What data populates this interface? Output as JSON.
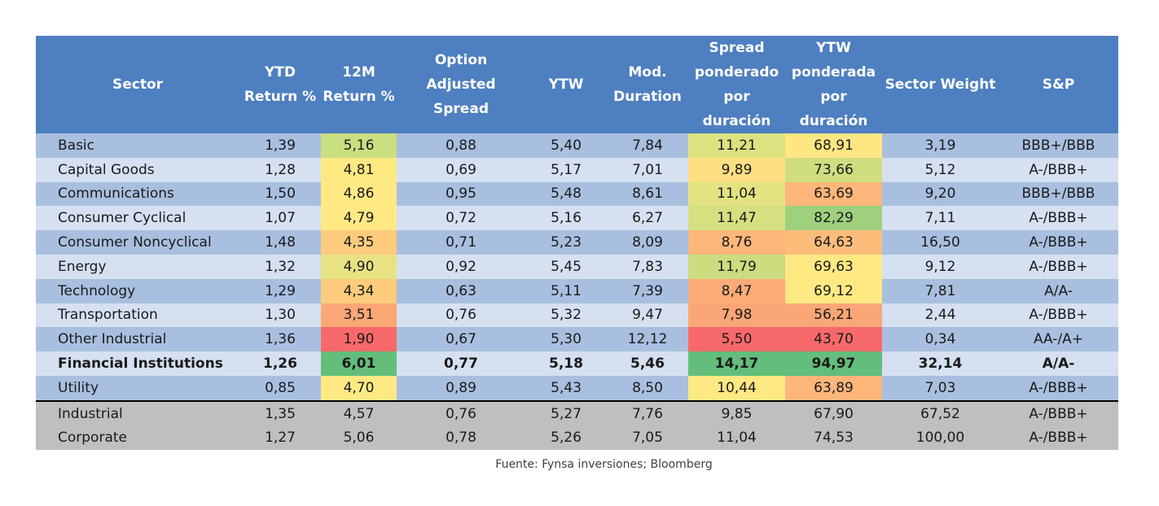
{
  "headers": [
    [
      "Sector"
    ],
    [
      "YTD",
      "Return %"
    ],
    [
      "12M",
      "Return %"
    ],
    [
      "Option",
      "Adjusted",
      "Spread"
    ],
    [
      "YTW"
    ],
    [
      "Mod.",
      "Duration"
    ],
    [
      "Spread",
      "ponderado",
      "por",
      "duración"
    ],
    [
      "YTW",
      "ponderada",
      "por",
      "duración"
    ],
    [
      "Sector Weight"
    ],
    [
      "S&P"
    ]
  ],
  "rows": [
    {
      "sector": "Basic",
      "ytd": "1,39",
      "m12": "5,16",
      "oas": "0,88",
      "ytw": "5,40",
      "dur": "7,84",
      "spw": "11,21",
      "ytwp": "68,91",
      "weight": "3,19",
      "sp": "BBB+/BBB"
    },
    {
      "sector": "Capital Goods",
      "ytd": "1,28",
      "m12": "4,81",
      "oas": "0,69",
      "ytw": "5,17",
      "dur": "7,01",
      "spw": "9,89",
      "ytwp": "73,66",
      "weight": "5,12",
      "sp": "A-/BBB+"
    },
    {
      "sector": "Communications",
      "ytd": "1,50",
      "m12": "4,86",
      "oas": "0,95",
      "ytw": "5,48",
      "dur": "8,61",
      "spw": "11,04",
      "ytwp": "63,69",
      "weight": "9,20",
      "sp": "BBB+/BBB"
    },
    {
      "sector": "Consumer Cyclical",
      "ytd": "1,07",
      "m12": "4,79",
      "oas": "0,72",
      "ytw": "5,16",
      "dur": "6,27",
      "spw": "11,47",
      "ytwp": "82,29",
      "weight": "7,11",
      "sp": "A-/BBB+"
    },
    {
      "sector": "Consumer Noncyclical",
      "ytd": "1,48",
      "m12": "4,35",
      "oas": "0,71",
      "ytw": "5,23",
      "dur": "8,09",
      "spw": "8,76",
      "ytwp": "64,63",
      "weight": "16,50",
      "sp": "A-/BBB+"
    },
    {
      "sector": "Energy",
      "ytd": "1,32",
      "m12": "4,90",
      "oas": "0,92",
      "ytw": "5,45",
      "dur": "7,83",
      "spw": "11,79",
      "ytwp": "69,63",
      "weight": "9,12",
      "sp": "A-/BBB+"
    },
    {
      "sector": "Technology",
      "ytd": "1,29",
      "m12": "4,34",
      "oas": "0,63",
      "ytw": "5,11",
      "dur": "7,39",
      "spw": "8,47",
      "ytwp": "69,12",
      "weight": "7,81",
      "sp": "A/A-"
    },
    {
      "sector": "Transportation",
      "ytd": "1,30",
      "m12": "3,51",
      "oas": "0,76",
      "ytw": "5,32",
      "dur": "9,47",
      "spw": "7,98",
      "ytwp": "56,21",
      "weight": "2,44",
      "sp": "A-/BBB+"
    },
    {
      "sector": "Other Industrial",
      "ytd": "1,36",
      "m12": "1,90",
      "oas": "0,67",
      "ytw": "5,30",
      "dur": "12,12",
      "spw": "5,50",
      "ytwp": "43,70",
      "weight": "0,34",
      "sp": "AA-/A+"
    },
    {
      "sector": "Financial Institutions",
      "ytd": "1,26",
      "m12": "6,01",
      "oas": "0,77",
      "ytw": "5,18",
      "dur": "5,46",
      "spw": "14,17",
      "ytwp": "94,97",
      "weight": "32,14",
      "sp": "A/A-"
    },
    {
      "sector": "Utility",
      "ytd": "0,85",
      "m12": "4,70",
      "oas": "0,89",
      "ytw": "5,43",
      "dur": "8,50",
      "spw": "10,44",
      "ytwp": "63,89",
      "weight": "7,03",
      "sp": "A-/BBB+"
    },
    {
      "sector": "Industrial",
      "ytd": "1,35",
      "m12": "4,57",
      "oas": "0,76",
      "ytw": "5,27",
      "dur": "7,76",
      "spw": "9,85",
      "ytwp": "67,90",
      "weight": "67,52",
      "sp": "A-/BBB+"
    },
    {
      "sector": "Corporate",
      "ytd": "1,27",
      "m12": "5,06",
      "oas": "0,78",
      "ytw": "5,26",
      "dur": "7,05",
      "spw": "11,04",
      "ytwp": "74,53",
      "weight": "100,00",
      "sp": "A-/BBB+"
    }
  ],
  "heat_colors": {
    "m12": [
      "#cadf7f",
      "#fde981",
      "#fee983",
      "#fee983",
      "#fccb7c",
      "#e8e382",
      "#fccb7c",
      "#fba776",
      "#f8696b",
      "#63be7b",
      "#fee983"
    ],
    "spw": [
      "#dde281",
      "#fcdf81",
      "#e3e382",
      "#d6e081",
      "#fcb67a",
      "#cbdd7f",
      "#fcab78",
      "#fba676",
      "#f8696b",
      "#63be7b",
      "#fee983"
    ],
    "ytwp": [
      "#fee783",
      "#cfde80",
      "#fcb57a",
      "#9fd07e",
      "#fcbd7b",
      "#fee983",
      "#fee983",
      "#fba676",
      "#f8696b",
      "#63be7b",
      "#fcb67a"
    ]
  },
  "chart_data": {
    "type": "table",
    "columns": [
      "Sector",
      "YTD Return %",
      "12M Return %",
      "Option Adjusted Spread",
      "YTW",
      "Mod. Duration",
      "Spread ponderado por duración",
      "YTW ponderada por duración",
      "Sector Weight",
      "S&P"
    ],
    "rows": [
      [
        "Basic",
        1.39,
        5.16,
        0.88,
        5.4,
        7.84,
        11.21,
        68.91,
        3.19,
        "BBB+/BBB"
      ],
      [
        "Capital Goods",
        1.28,
        4.81,
        0.69,
        5.17,
        7.01,
        9.89,
        73.66,
        5.12,
        "A-/BBB+"
      ],
      [
        "Communications",
        1.5,
        4.86,
        0.95,
        5.48,
        8.61,
        11.04,
        63.69,
        9.2,
        "BBB+/BBB"
      ],
      [
        "Consumer Cyclical",
        1.07,
        4.79,
        0.72,
        5.16,
        6.27,
        11.47,
        82.29,
        7.11,
        "A-/BBB+"
      ],
      [
        "Consumer Noncyclical",
        1.48,
        4.35,
        0.71,
        5.23,
        8.09,
        8.76,
        64.63,
        16.5,
        "A-/BBB+"
      ],
      [
        "Energy",
        1.32,
        4.9,
        0.92,
        5.45,
        7.83,
        11.79,
        69.63,
        9.12,
        "A-/BBB+"
      ],
      [
        "Technology",
        1.29,
        4.34,
        0.63,
        5.11,
        7.39,
        8.47,
        69.12,
        7.81,
        "A/A-"
      ],
      [
        "Transportation",
        1.3,
        3.51,
        0.76,
        5.32,
        9.47,
        7.98,
        56.21,
        2.44,
        "A-/BBB+"
      ],
      [
        "Other Industrial",
        1.36,
        1.9,
        0.67,
        5.3,
        12.12,
        5.5,
        43.7,
        0.34,
        "AA-/A+"
      ],
      [
        "Financial Institutions",
        1.26,
        6.01,
        0.77,
        5.18,
        5.46,
        14.17,
        94.97,
        32.14,
        "A/A-"
      ],
      [
        "Utility",
        0.85,
        4.7,
        0.89,
        5.43,
        8.5,
        10.44,
        63.89,
        7.03,
        "A-/BBB+"
      ],
      [
        "Industrial",
        1.35,
        4.57,
        0.76,
        5.27,
        7.76,
        9.85,
        67.9,
        67.52,
        "A-/BBB+"
      ],
      [
        "Corporate",
        1.27,
        5.06,
        0.78,
        5.26,
        7.05,
        11.04,
        74.53,
        100.0,
        "A-/BBB+"
      ]
    ],
    "highlighted_row": "Financial Institutions",
    "heatmap_columns": [
      "12M Return %",
      "Spread ponderado por duración",
      "YTW ponderada por duración"
    ],
    "aggregate_rows_color": "#e8141b"
  },
  "source": "Fuente: Fynsa inversiones; Bloomberg"
}
